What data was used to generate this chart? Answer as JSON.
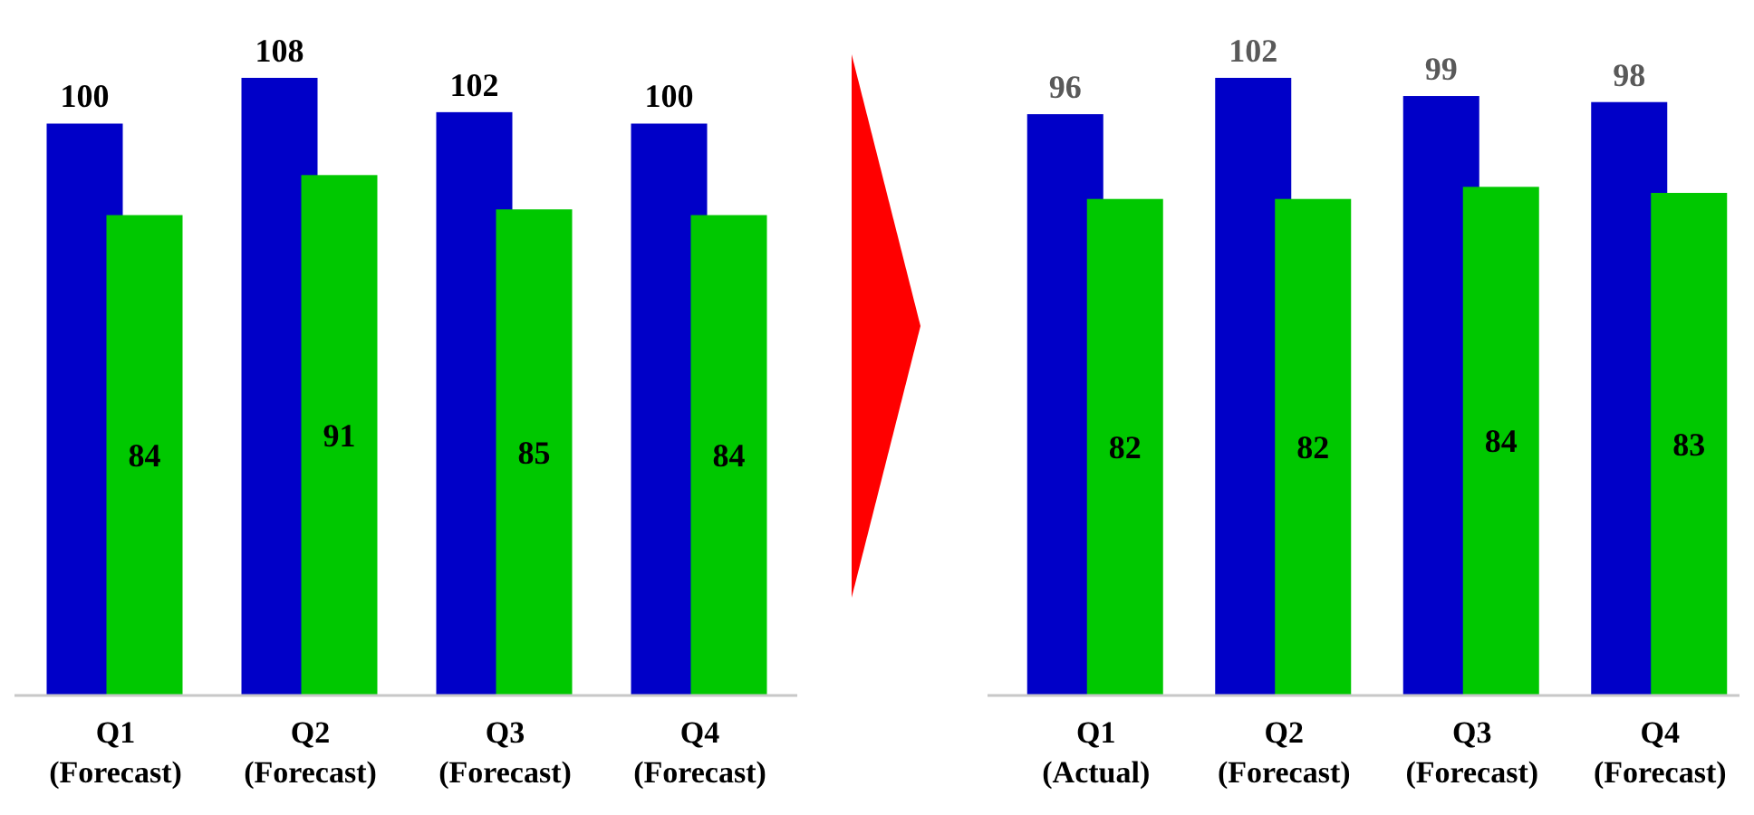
{
  "chart_data": [
    {
      "type": "bar",
      "categories": [
        "Q1\n(Forecast)",
        "Q2\n(Forecast)",
        "Q3\n(Forecast)",
        "Q4\n(Forecast)"
      ],
      "data_labels": true,
      "series": [
        {
          "color": "#0000c8",
          "values": [
            100,
            108,
            102,
            100
          ]
        },
        {
          "color": "#00c800",
          "values": [
            84,
            91,
            85,
            84
          ]
        }
      ]
    },
    {
      "type": "bar",
      "categories": [
        "Q1\n(Actual)",
        "Q2\n(Forecast)",
        "Q3\n(Forecast)",
        "Q4\n(Forecast)"
      ],
      "data_labels": true,
      "series": [
        {
          "color": "#0000c8",
          "values": [
            96,
            102,
            99,
            98
          ]
        },
        {
          "color": "#00c800",
          "values": [
            82,
            82,
            84,
            83
          ]
        }
      ]
    }
  ]
}
